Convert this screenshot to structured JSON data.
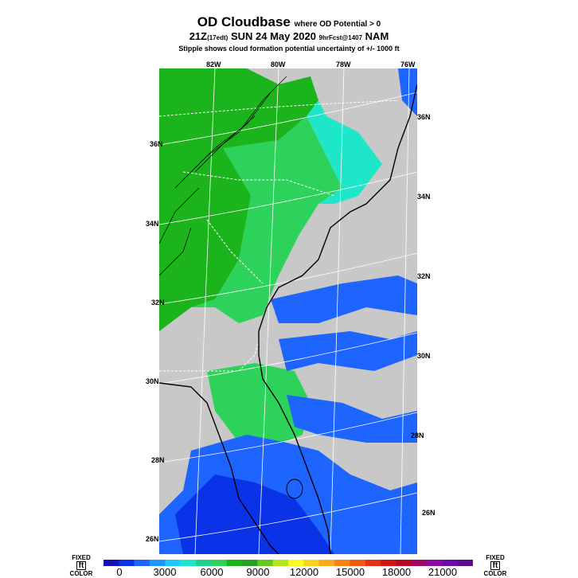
{
  "header": {
    "title_main": "OD Cloudbase",
    "title_note": "where OD Potential > 0",
    "time_prefix": "21Z",
    "time_local": "(17edt)",
    "time_main": "SUN 24 May 2020",
    "forecast": "9hrFcst@1407",
    "model": "NAM",
    "subtitle": "Stipple shows cloud formation potential uncertainty of +/- 1000 ft"
  },
  "map": {
    "lon_labels": [
      "82W",
      "80W",
      "78W",
      "76W"
    ],
    "lat_labels_left": [
      "36N",
      "34N",
      "32N",
      "30N",
      "28N",
      "26N"
    ],
    "lat_labels_right": [
      "36N",
      "34N",
      "32N",
      "30N",
      "28N",
      "26N"
    ],
    "colors": {
      "land_no_data": "#c8c8c8",
      "green_dark": "#1cb41c",
      "green_light": "#2cd25a",
      "cyan": "#1ee6c8",
      "blue": "#1e64ff",
      "blue_dark": "#0a32e6",
      "border": "#ffffff",
      "coast": "#000000"
    }
  },
  "colorbar": {
    "left_label_top": "FIXED",
    "left_label_unit": "ft",
    "left_label_bottom": "COLOR",
    "right_label_top": "FIXED",
    "right_label_unit": "ft",
    "right_label_bottom": "COLOR",
    "ticks": [
      "0",
      "3000",
      "6000",
      "9000",
      "12000",
      "15000",
      "18000",
      "21000"
    ],
    "colors": [
      "#1414b4",
      "#0a32e6",
      "#1e64ff",
      "#1e96ff",
      "#1ec8ff",
      "#1ee6c8",
      "#1ed28c",
      "#2cd25a",
      "#1cb41c",
      "#28a028",
      "#64c81e",
      "#b4e61e",
      "#fafa1e",
      "#fad21e",
      "#faaa1e",
      "#fa8214",
      "#f05a14",
      "#e63214",
      "#d21414",
      "#b40a28",
      "#a00a64",
      "#8c0aa0",
      "#6e0aaa",
      "#5a0a8c"
    ]
  }
}
